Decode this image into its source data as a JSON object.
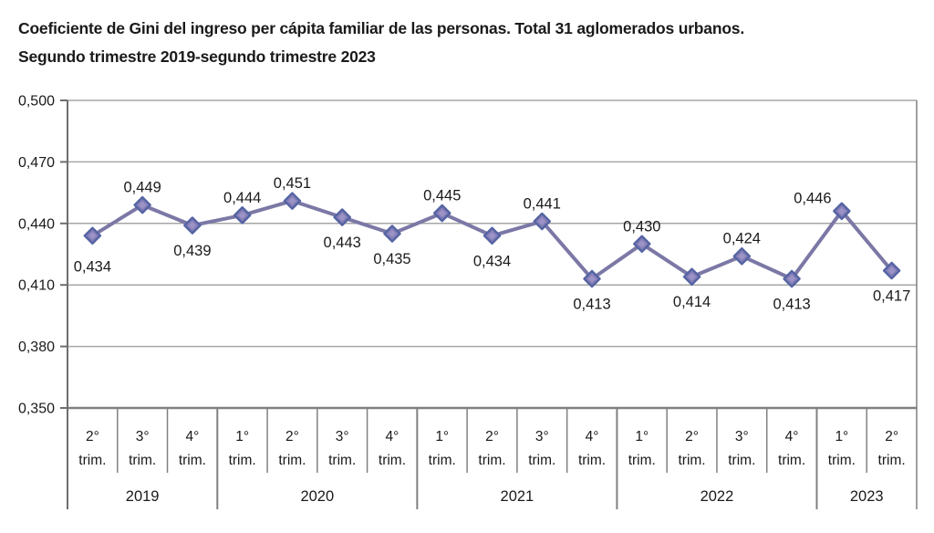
{
  "title": {
    "line1": "Coeficiente de Gini del ingreso per cápita familiar de las personas. Total 31 aglomerados urbanos.",
    "line2": "Segundo trimestre 2019-segundo trimestre 2023"
  },
  "chart_data": {
    "type": "line",
    "title": "Coeficiente de Gini del ingreso per cápita familiar de las personas. Total 31 aglomerados urbanos. Segundo trimestre 2019-segundo trimestre 2023",
    "xlabel": "",
    "ylabel": "",
    "ylim": [
      0.35,
      0.5
    ],
    "grid": true,
    "legend": false,
    "decimal_style": "comma",
    "quarter_suffix": "trim.",
    "y_ticks": [
      {
        "label": "0,500",
        "value": 0.5
      },
      {
        "label": "0,470",
        "value": 0.47
      },
      {
        "label": "0,440",
        "value": 0.44
      },
      {
        "label": "0,410",
        "value": 0.41
      },
      {
        "label": "0,380",
        "value": 0.38
      },
      {
        "label": "0,350",
        "value": 0.35
      }
    ],
    "series": [
      {
        "name": "Coeficiente de Gini",
        "values": [
          0.434,
          0.449,
          0.439,
          0.444,
          0.451,
          0.443,
          0.435,
          0.445,
          0.434,
          0.441,
          0.413,
          0.43,
          0.414,
          0.424,
          0.413,
          0.446,
          0.417
        ]
      }
    ],
    "points": [
      {
        "year": "2019",
        "quarter": "2°",
        "value": 0.434,
        "label": "0,434",
        "label_pos": "below",
        "label_dy": 6
      },
      {
        "year": "2019",
        "quarter": "3°",
        "value": 0.449,
        "label": "0,449",
        "label_pos": "above"
      },
      {
        "year": "2019",
        "quarter": "4°",
        "value": 0.439,
        "label": "0,439",
        "label_pos": "below"
      },
      {
        "year": "2020",
        "quarter": "1°",
        "value": 0.444,
        "label": "0,444",
        "label_pos": "above"
      },
      {
        "year": "2020",
        "quarter": "2°",
        "value": 0.451,
        "label": "0,451",
        "label_pos": "above"
      },
      {
        "year": "2020",
        "quarter": "3°",
        "value": 0.443,
        "label": "0,443",
        "label_pos": "below"
      },
      {
        "year": "2020",
        "quarter": "4°",
        "value": 0.435,
        "label": "0,435",
        "label_pos": "below"
      },
      {
        "year": "2021",
        "quarter": "1°",
        "value": 0.445,
        "label": "0,445",
        "label_pos": "above"
      },
      {
        "year": "2021",
        "quarter": "2°",
        "value": 0.434,
        "label": "0,434",
        "label_pos": "below"
      },
      {
        "year": "2021",
        "quarter": "3°",
        "value": 0.441,
        "label": "0,441",
        "label_pos": "above"
      },
      {
        "year": "2021",
        "quarter": "4°",
        "value": 0.413,
        "label": "0,413",
        "label_pos": "below"
      },
      {
        "year": "2022",
        "quarter": "1°",
        "value": 0.43,
        "label": "0,430",
        "label_pos": "above"
      },
      {
        "year": "2022",
        "quarter": "2°",
        "value": 0.414,
        "label": "0,414",
        "label_pos": "below"
      },
      {
        "year": "2022",
        "quarter": "3°",
        "value": 0.424,
        "label": "0,424",
        "label_pos": "above"
      },
      {
        "year": "2022",
        "quarter": "4°",
        "value": 0.413,
        "label": "0,413",
        "label_pos": "below"
      },
      {
        "year": "2023",
        "quarter": "1°",
        "value": 0.446,
        "label": "0,446",
        "label_pos": "above",
        "label_dx": -32,
        "label_dy": 5
      },
      {
        "year": "2023",
        "quarter": "2°",
        "value": 0.417,
        "label": "0,417",
        "label_pos": "below"
      }
    ],
    "year_groups": [
      {
        "label": "2019",
        "count": 3
      },
      {
        "label": "2020",
        "count": 4
      },
      {
        "label": "2021",
        "count": 4
      },
      {
        "label": "2022",
        "count": 4
      },
      {
        "label": "2023",
        "count": 2
      }
    ],
    "colors": {
      "line": "#7B78A6",
      "marker_fill": "#8780B9",
      "marker_stroke": "#5564A3",
      "marker_inner": "#A096C8",
      "gridline": "#a6a6a6",
      "axis": "#6e6e6e",
      "bottom_axis": "#808080",
      "separator": "#808080",
      "text": "#1a1a1a"
    }
  }
}
